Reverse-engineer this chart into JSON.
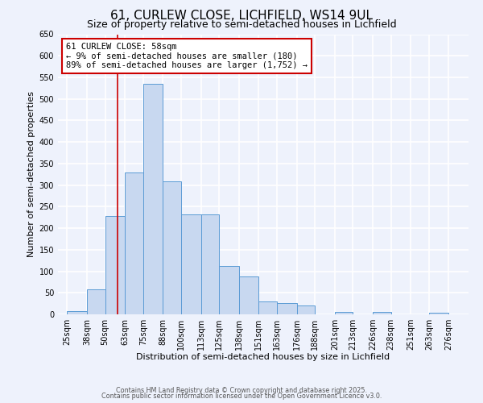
{
  "title": "61, CURLEW CLOSE, LICHFIELD, WS14 9UL",
  "subtitle": "Size of property relative to semi-detached houses in Lichfield",
  "xlabel": "Distribution of semi-detached houses by size in Lichfield",
  "ylabel": "Number of semi-detached properties",
  "bin_labels": [
    "25sqm",
    "38sqm",
    "50sqm",
    "63sqm",
    "75sqm",
    "88sqm",
    "100sqm",
    "113sqm",
    "125sqm",
    "138sqm",
    "151sqm",
    "163sqm",
    "176sqm",
    "188sqm",
    "201sqm",
    "213sqm",
    "226sqm",
    "238sqm",
    "251sqm",
    "263sqm",
    "276sqm"
  ],
  "bin_edges": [
    25,
    38,
    50,
    63,
    75,
    88,
    100,
    113,
    125,
    138,
    151,
    163,
    176,
    188,
    201,
    213,
    226,
    238,
    251,
    263,
    276,
    289
  ],
  "bar_heights": [
    8,
    58,
    228,
    330,
    535,
    308,
    232,
    232,
    113,
    88,
    30,
    27,
    20,
    0,
    5,
    0,
    5,
    0,
    0,
    3,
    0
  ],
  "bar_color": "#c8d8f0",
  "bar_edge_color": "#5b9bd5",
  "red_line_x": 58,
  "ylim": [
    0,
    650
  ],
  "yticks": [
    0,
    50,
    100,
    150,
    200,
    250,
    300,
    350,
    400,
    450,
    500,
    550,
    600,
    650
  ],
  "xlim_left": 19,
  "xlim_right": 289,
  "annotation_title": "61 CURLEW CLOSE: 58sqm",
  "annotation_line1": "← 9% of semi-detached houses are smaller (180)",
  "annotation_line2": "89% of semi-detached houses are larger (1,752) →",
  "annotation_box_color": "#ffffff",
  "annotation_box_edge": "#cc0000",
  "footer_line1": "Contains HM Land Registry data © Crown copyright and database right 2025.",
  "footer_line2": "Contains public sector information licensed under the Open Government Licence v3.0.",
  "background_color": "#eef2fc",
  "plot_bg_color": "#eef2fc",
  "grid_color": "#ffffff",
  "title_fontsize": 11,
  "subtitle_fontsize": 9,
  "axis_label_fontsize": 8,
  "tick_fontsize": 7,
  "annotation_fontsize": 7.5,
  "footer_fontsize": 5.8
}
